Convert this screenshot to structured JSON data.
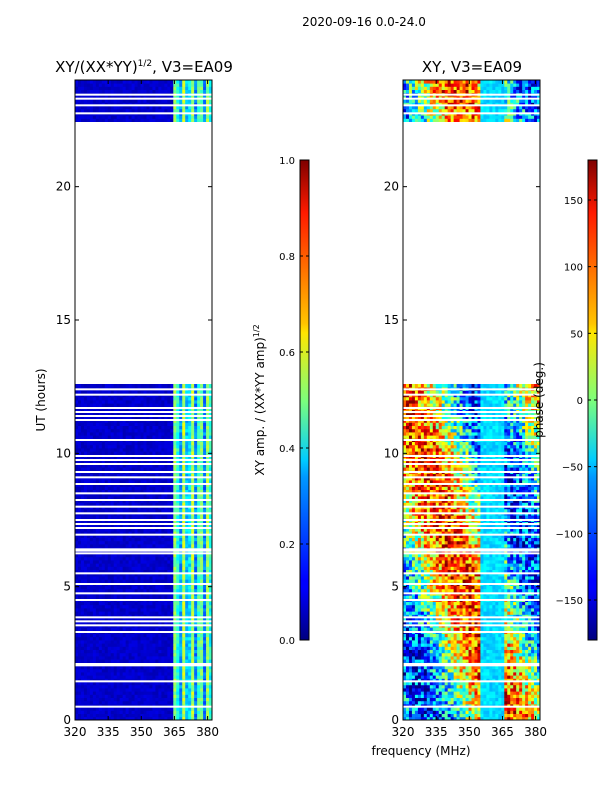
{
  "figure": {
    "suptitle": "2020-09-16 0.0-24.0",
    "xlabel": "frequency (MHz)"
  },
  "chart_data": [
    {
      "type": "heatmap",
      "title": "XY/(XX*YY)",
      "title_sup": "1/2",
      "title_suffix": ", V3=EA09",
      "xlabel": "",
      "ylabel": "UT (hours)",
      "xlim": [
        320,
        382
      ],
      "ylim": [
        0,
        24
      ],
      "xticks": [
        "320",
        "335",
        "350",
        "365",
        "380"
      ],
      "xtick_values": [
        320,
        335,
        350,
        365,
        380
      ],
      "yticks": [
        "0",
        "5",
        "10",
        "15",
        "20"
      ],
      "ytick_values": [
        0,
        5,
        10,
        15,
        20
      ],
      "data_ranges_hours": [
        [
          0,
          12.6
        ],
        [
          22.4,
          24
        ]
      ],
      "bright_band_mhz": [
        364,
        381
      ],
      "colorbar": {
        "label": "XY amp. / (XX*YY amp)",
        "label_sup": "1/2",
        "range": [
          0,
          1
        ],
        "ticks": [
          "0.0",
          "0.2",
          "0.4",
          "0.6",
          "0.8",
          "1.0"
        ],
        "tick_values": [
          0,
          0.2,
          0.4,
          0.6,
          0.8,
          1.0
        ]
      }
    },
    {
      "type": "heatmap",
      "title": "XY, V3=EA09",
      "xlabel": "frequency (MHz)",
      "ylabel": "",
      "xlim": [
        320,
        382
      ],
      "ylim": [
        0,
        24
      ],
      "xticks": [
        "320",
        "335",
        "350",
        "365",
        "380"
      ],
      "xtick_values": [
        320,
        335,
        350,
        365,
        380
      ],
      "yticks": [
        "0",
        "5",
        "10",
        "15",
        "20"
      ],
      "ytick_values": [
        0,
        5,
        10,
        15,
        20
      ],
      "data_ranges_hours": [
        [
          0,
          12.6
        ],
        [
          22.4,
          24
        ]
      ],
      "colorbar": {
        "label": "phase (deg.)",
        "range": [
          -180,
          180
        ],
        "ticks": [
          "−150",
          "−100",
          "−50",
          "0",
          "50",
          "100",
          "150"
        ],
        "tick_values": [
          -150,
          -100,
          -50,
          0,
          50,
          100,
          150
        ]
      }
    }
  ]
}
